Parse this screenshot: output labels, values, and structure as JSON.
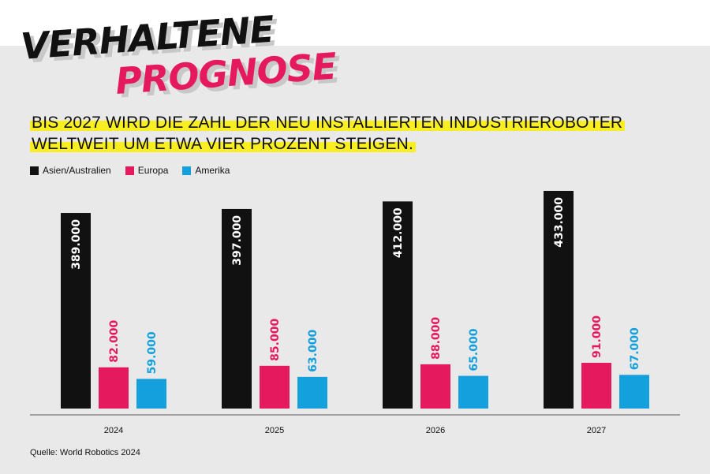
{
  "header": {
    "title_line1": "VERHALTENE",
    "title_line2": "PROGNOSE",
    "subtitle_line1": "BIS 2027 WIRD DIE ZAHL DER NEU INSTALLIERTEN INDUSTRIEROBOTER",
    "subtitle_line2": "WELTWEIT UM ETWA VIER PROZENT STEIGEN."
  },
  "source": "Quelle: World Robotics 2024",
  "colors": {
    "asien": "#111111",
    "europa": "#e5195e",
    "amerika": "#13a0dc",
    "highlight": "#f8ee22"
  },
  "chart_data": {
    "type": "bar",
    "categories": [
      "2024",
      "2025",
      "2026",
      "2027"
    ],
    "series": [
      {
        "name": "Asien/Australien",
        "values": [
          389000,
          397000,
          412000,
          433000
        ],
        "labels": [
          "389.000",
          "397.000",
          "412.000",
          "433.000"
        ]
      },
      {
        "name": "Europa",
        "values": [
          82000,
          85000,
          88000,
          91000
        ],
        "labels": [
          "82.000",
          "85.000",
          "88.000",
          "91.000"
        ]
      },
      {
        "name": "Amerika",
        "values": [
          59000,
          63000,
          65000,
          67000
        ],
        "labels": [
          "59.000",
          "63.000",
          "65.000",
          "67.000"
        ]
      }
    ],
    "ylim": [
      0,
      433000
    ],
    "legend": "top-left",
    "grid": false
  }
}
